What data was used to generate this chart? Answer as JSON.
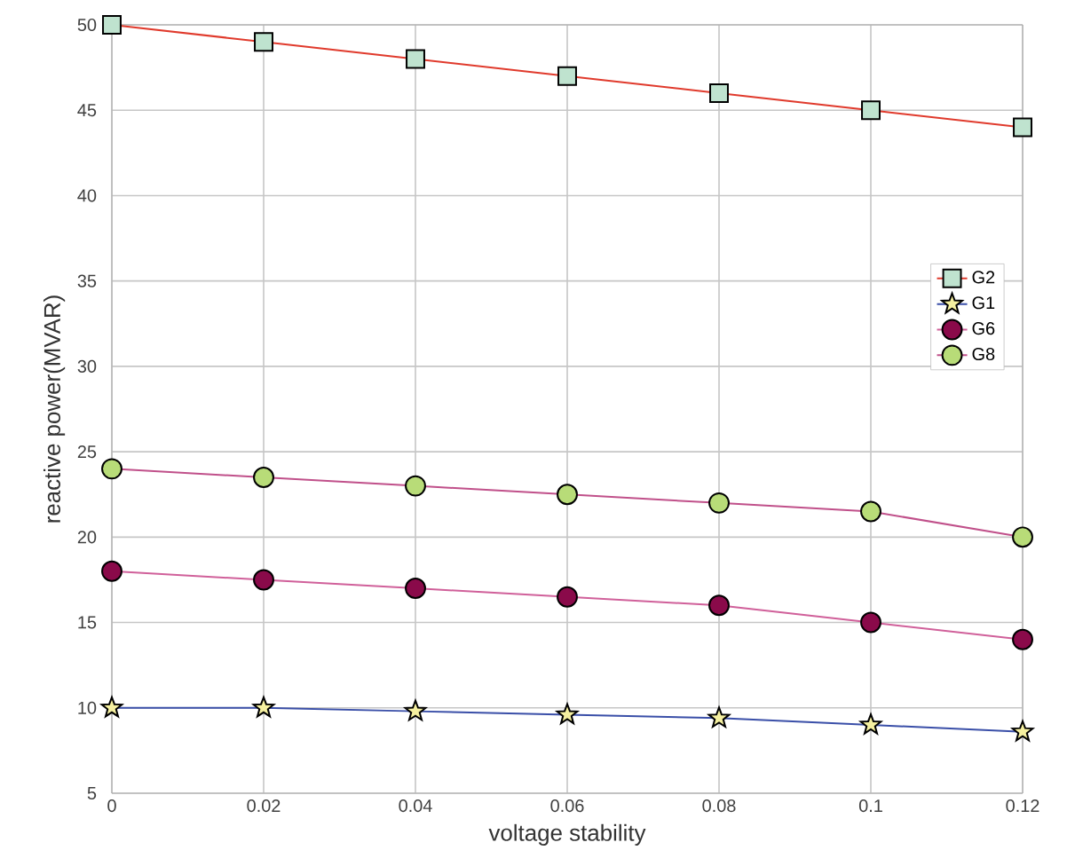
{
  "chart_data": {
    "type": "line",
    "xlabel": "voltage stability",
    "ylabel": "reactive power(MVAR)",
    "x": [
      0,
      0.02,
      0.04,
      0.06,
      0.08,
      0.1,
      0.12
    ],
    "series": [
      {
        "name": "G2",
        "color": "#e03a2c",
        "marker": "square",
        "colors": [
          "#bfe3cf",
          "#bfe3cf",
          "#bfe3cf",
          "#bfe3cf",
          "#bfe3cf",
          "#bfe3cf",
          "#bfe3cf"
        ],
        "values": [
          50,
          49,
          48,
          47,
          46,
          45,
          44
        ]
      },
      {
        "name": "G1",
        "color": "#3a4fa8",
        "marker": "star",
        "colors": [
          "#f5f0a0",
          "#f5f0a0",
          "#f5f0a0",
          "#f5f0a0",
          "#f5f0a0",
          "#f5f0a0",
          "#f5f0a0"
        ],
        "values": [
          10,
          10,
          9.8,
          9.6,
          9.4,
          9,
          8.6
        ]
      },
      {
        "name": "G6",
        "color": "#d0609a",
        "marker": "circle",
        "colors": [
          "#8a0a4a",
          "#8a0a4a",
          "#8a0a4a",
          "#8a0a4a",
          "#8a0a4a",
          "#8a0a4a",
          "#8a0a4a"
        ],
        "values": [
          18,
          17.5,
          17,
          16.5,
          16,
          15,
          14
        ]
      },
      {
        "name": "G8",
        "color": "#c0508a",
        "marker": "circle",
        "colors": [
          "#b8dc78",
          "#b8dc78",
          "#b8dc78",
          "#b8dc78",
          "#b8dc78",
          "#b8dc78",
          "#b8dc78"
        ],
        "values": [
          24,
          23.5,
          23,
          22.5,
          22,
          21.5,
          20
        ]
      }
    ],
    "xlim": [
      0,
      0.12
    ],
    "ylim": [
      5,
      50
    ],
    "xticks": [
      0,
      0.02,
      0.04,
      0.06,
      0.08,
      0.1,
      0.12
    ],
    "yticks": [
      5,
      10,
      15,
      20,
      25,
      30,
      35,
      40,
      45,
      50
    ],
    "grid": true,
    "legend": "right",
    "line_style": "solid"
  }
}
